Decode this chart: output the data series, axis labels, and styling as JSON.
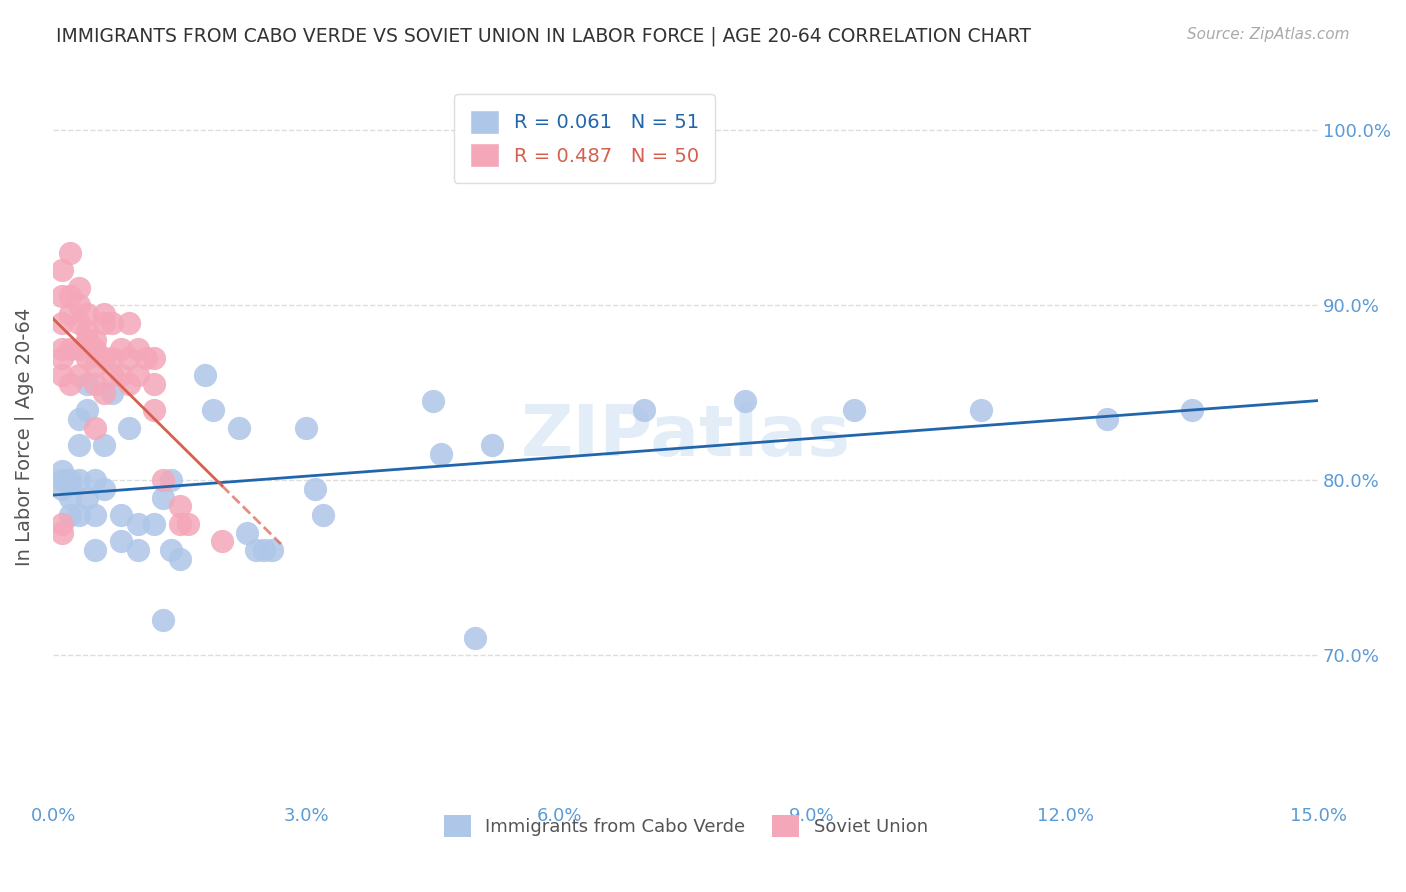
{
  "title": "IMMIGRANTS FROM CABO VERDE VS SOVIET UNION IN LABOR FORCE | AGE 20-64 CORRELATION CHART",
  "source": "Source: ZipAtlas.com",
  "xlabel": "",
  "ylabel": "In Labor Force | Age 20-64",
  "xlim": [
    0.0,
    0.15
  ],
  "ylim": [
    0.62,
    1.03
  ],
  "yticks": [
    0.7,
    0.8,
    0.9,
    1.0
  ],
  "ytick_labels": [
    "70.0%",
    "80.0%",
    "90.0%",
    "100.0%"
  ],
  "xticks": [
    0.0,
    0.03,
    0.06,
    0.09,
    0.12,
    0.15
  ],
  "xtick_labels": [
    "0.0%",
    "3.0%",
    "6.0%",
    "9.0%",
    "12.0%",
    "15.0%"
  ],
  "cabo_verde_color": "#aec6e8",
  "soviet_color": "#f4a7b9",
  "cabo_verde_line_color": "#2166ac",
  "soviet_line_color": "#d6604d",
  "cabo_verde_R": 0.061,
  "cabo_verde_N": 51,
  "soviet_R": 0.487,
  "soviet_N": 50,
  "cabo_verde_x": [
    0.001,
    0.001,
    0.001,
    0.002,
    0.002,
    0.002,
    0.002,
    0.003,
    0.003,
    0.003,
    0.003,
    0.004,
    0.004,
    0.004,
    0.005,
    0.005,
    0.005,
    0.006,
    0.006,
    0.007,
    0.008,
    0.008,
    0.009,
    0.01,
    0.01,
    0.012,
    0.013,
    0.013,
    0.014,
    0.014,
    0.015,
    0.018,
    0.019,
    0.022,
    0.023,
    0.024,
    0.025,
    0.026,
    0.03,
    0.031,
    0.032,
    0.045,
    0.046,
    0.05,
    0.052,
    0.07,
    0.082,
    0.095,
    0.11,
    0.125,
    0.135
  ],
  "cabo_verde_y": [
    0.8,
    0.805,
    0.795,
    0.8,
    0.798,
    0.78,
    0.79,
    0.835,
    0.82,
    0.8,
    0.78,
    0.855,
    0.84,
    0.79,
    0.8,
    0.78,
    0.76,
    0.82,
    0.795,
    0.85,
    0.78,
    0.765,
    0.83,
    0.775,
    0.76,
    0.775,
    0.72,
    0.79,
    0.8,
    0.76,
    0.755,
    0.86,
    0.84,
    0.83,
    0.77,
    0.76,
    0.76,
    0.76,
    0.83,
    0.795,
    0.78,
    0.845,
    0.815,
    0.71,
    0.82,
    0.84,
    0.845,
    0.84,
    0.84,
    0.835,
    0.84
  ],
  "soviet_x": [
    0.001,
    0.001,
    0.001,
    0.001,
    0.001,
    0.001,
    0.001,
    0.001,
    0.002,
    0.002,
    0.002,
    0.002,
    0.002,
    0.003,
    0.003,
    0.003,
    0.003,
    0.003,
    0.004,
    0.004,
    0.004,
    0.004,
    0.005,
    0.005,
    0.005,
    0.005,
    0.005,
    0.006,
    0.006,
    0.006,
    0.006,
    0.007,
    0.007,
    0.007,
    0.008,
    0.008,
    0.009,
    0.009,
    0.009,
    0.01,
    0.01,
    0.011,
    0.012,
    0.012,
    0.012,
    0.013,
    0.015,
    0.015,
    0.016,
    0.02
  ],
  "soviet_y": [
    0.92,
    0.905,
    0.89,
    0.875,
    0.87,
    0.86,
    0.775,
    0.77,
    0.93,
    0.905,
    0.895,
    0.875,
    0.855,
    0.91,
    0.9,
    0.89,
    0.875,
    0.86,
    0.895,
    0.885,
    0.88,
    0.87,
    0.88,
    0.875,
    0.865,
    0.855,
    0.83,
    0.895,
    0.89,
    0.87,
    0.85,
    0.89,
    0.87,
    0.86,
    0.875,
    0.86,
    0.89,
    0.87,
    0.855,
    0.875,
    0.86,
    0.87,
    0.87,
    0.855,
    0.84,
    0.8,
    0.785,
    0.775,
    0.775,
    0.765
  ],
  "background_color": "#ffffff",
  "grid_color": "#dddddd",
  "title_color": "#333333",
  "axis_label_color": "#5b9bd5",
  "tick_color": "#5b9bd5",
  "watermark": "ZIPatlas",
  "legend_label_cabo": "Immigrants from Cabo Verde",
  "legend_label_soviet": "Soviet Union"
}
